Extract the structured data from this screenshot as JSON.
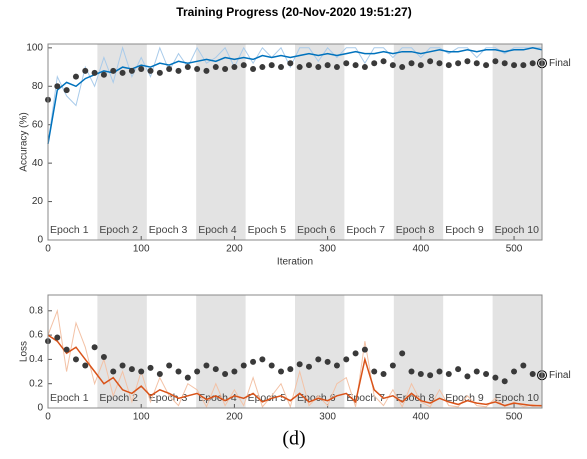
{
  "title": "Training Progress (20-Nov-2020 19:51:27)",
  "caption": "(d)",
  "epochs": {
    "labels": [
      "Epoch 1",
      "Epoch 2",
      "Epoch 3",
      "Epoch 4",
      "Epoch 5",
      "Epoch 6",
      "Epoch 7",
      "Epoch 8",
      "Epoch 9",
      "Epoch 10"
    ],
    "bounds": [
      0,
      53,
      106,
      159,
      212,
      265,
      318,
      371,
      424,
      477,
      530
    ]
  },
  "chart_data": [
    {
      "type": "line",
      "y_label": "Accuracy (%)",
      "x_label": "Iteration",
      "annotation": "Final",
      "xlim": [
        0,
        530
      ],
      "xticks": [
        0,
        100,
        200,
        300,
        400,
        500
      ],
      "ylim": [
        0,
        102
      ],
      "yticks": [
        0,
        20,
        40,
        60,
        80,
        100
      ],
      "x": [
        0,
        10,
        20,
        30,
        40,
        50,
        60,
        70,
        80,
        90,
        100,
        110,
        120,
        130,
        140,
        150,
        160,
        170,
        180,
        190,
        200,
        210,
        220,
        230,
        240,
        250,
        260,
        270,
        280,
        290,
        300,
        310,
        320,
        330,
        340,
        350,
        360,
        370,
        380,
        390,
        400,
        410,
        420,
        430,
        440,
        450,
        460,
        470,
        480,
        490,
        500,
        510,
        520,
        530
      ],
      "series": [
        {
          "color": "#a9cbea",
          "width": 1,
          "values": [
            50,
            85,
            75,
            70,
            90,
            80,
            95,
            82,
            100,
            85,
            95,
            85,
            100,
            88,
            97,
            90,
            100,
            92,
            95,
            100,
            90,
            100,
            92,
            100,
            95,
            100,
            90,
            100,
            100,
            93,
            100,
            95,
            100,
            100,
            92,
            100,
            100,
            95,
            100,
            100,
            95,
            100,
            100,
            97,
            100,
            100,
            95,
            100,
            100,
            97,
            100,
            100,
            100,
            100
          ]
        },
        {
          "color": "#0072bd",
          "width": 1.5,
          "values": [
            50,
            78,
            82,
            80,
            84,
            86,
            88,
            87,
            90,
            89,
            91,
            90,
            92,
            91,
            93,
            92,
            93,
            94,
            93,
            95,
            94,
            95,
            94,
            96,
            95,
            96,
            95,
            96,
            97,
            96,
            97,
            96,
            97,
            98,
            97,
            97,
            98,
            97,
            98,
            98,
            97,
            98,
            99,
            98,
            98,
            99,
            98,
            99,
            99,
            98,
            99,
            99,
            100,
            99
          ]
        },
        {
          "color": "#3a3a3a",
          "marker": true,
          "values": [
            73,
            80,
            78,
            85,
            88,
            87,
            86,
            88,
            87,
            88,
            89,
            88,
            87,
            89,
            88,
            90,
            89,
            88,
            90,
            89,
            90,
            91,
            89,
            90,
            91,
            90,
            92,
            90,
            91,
            90,
            91,
            90,
            92,
            91,
            90,
            92,
            93,
            91,
            90,
            92,
            91,
            93,
            92,
            91,
            92,
            93,
            92,
            91,
            93,
            92,
            91,
            91,
            92,
            92
          ]
        }
      ]
    },
    {
      "type": "line",
      "y_label": "Loss",
      "annotation": "Final",
      "xlim": [
        0,
        530
      ],
      "xticks": [
        0,
        100,
        200,
        300,
        400,
        500
      ],
      "ylim": [
        0,
        0.93
      ],
      "yticks": [
        0,
        0.2,
        0.4,
        0.6,
        0.8
      ],
      "x": [
        0,
        10,
        20,
        30,
        40,
        50,
        60,
        70,
        80,
        90,
        100,
        110,
        120,
        130,
        140,
        150,
        160,
        170,
        180,
        190,
        200,
        210,
        220,
        230,
        240,
        250,
        260,
        270,
        280,
        290,
        300,
        310,
        320,
        330,
        340,
        350,
        360,
        370,
        380,
        390,
        400,
        410,
        420,
        430,
        440,
        450,
        460,
        470,
        480,
        490,
        500,
        510,
        520,
        530
      ],
      "series": [
        {
          "color": "#f3c2a6",
          "width": 1,
          "values": [
            0.6,
            0.8,
            0.3,
            0.7,
            0.5,
            0.2,
            0.4,
            0.1,
            0.3,
            0.05,
            0.3,
            0.05,
            0.25,
            0.1,
            0.02,
            0.2,
            0.15,
            0.01,
            0.2,
            0.02,
            0.15,
            0.02,
            0.25,
            0.01,
            0.1,
            0.2,
            0.01,
            0.3,
            0.02,
            0.1,
            0.02,
            0.2,
            0.25,
            0.01,
            0.55,
            0.1,
            0.02,
            0.15,
            0.01,
            0.2,
            0.05,
            0.01,
            0.15,
            0.02,
            0.01,
            0.1,
            0.02,
            0.01,
            0.08,
            0.01,
            0.05,
            0.01,
            0.03,
            0.01
          ]
        },
        {
          "color": "#d95319",
          "width": 1.5,
          "values": [
            0.6,
            0.55,
            0.45,
            0.5,
            0.4,
            0.3,
            0.2,
            0.25,
            0.15,
            0.12,
            0.18,
            0.1,
            0.15,
            0.12,
            0.08,
            0.1,
            0.12,
            0.07,
            0.1,
            0.06,
            0.1,
            0.08,
            0.12,
            0.05,
            0.08,
            0.1,
            0.06,
            0.12,
            0.05,
            0.08,
            0.06,
            0.1,
            0.12,
            0.05,
            0.4,
            0.15,
            0.08,
            0.1,
            0.05,
            0.12,
            0.06,
            0.04,
            0.08,
            0.05,
            0.03,
            0.06,
            0.04,
            0.03,
            0.05,
            0.02,
            0.04,
            0.03,
            0.02,
            0.02
          ]
        },
        {
          "color": "#3a3a3a",
          "marker": true,
          "values": [
            0.55,
            0.58,
            0.48,
            0.4,
            0.35,
            0.5,
            0.42,
            0.3,
            0.35,
            0.32,
            0.3,
            0.33,
            0.28,
            0.35,
            0.3,
            0.25,
            0.3,
            0.35,
            0.32,
            0.28,
            0.3,
            0.35,
            0.38,
            0.4,
            0.35,
            0.3,
            0.32,
            0.36,
            0.34,
            0.4,
            0.38,
            0.35,
            0.4,
            0.45,
            0.48,
            0.3,
            0.28,
            0.35,
            0.45,
            0.3,
            0.28,
            0.27,
            0.3,
            0.28,
            0.32,
            0.26,
            0.3,
            0.28,
            0.25,
            0.22,
            0.3,
            0.35,
            0.28,
            0.27
          ]
        }
      ]
    }
  ]
}
